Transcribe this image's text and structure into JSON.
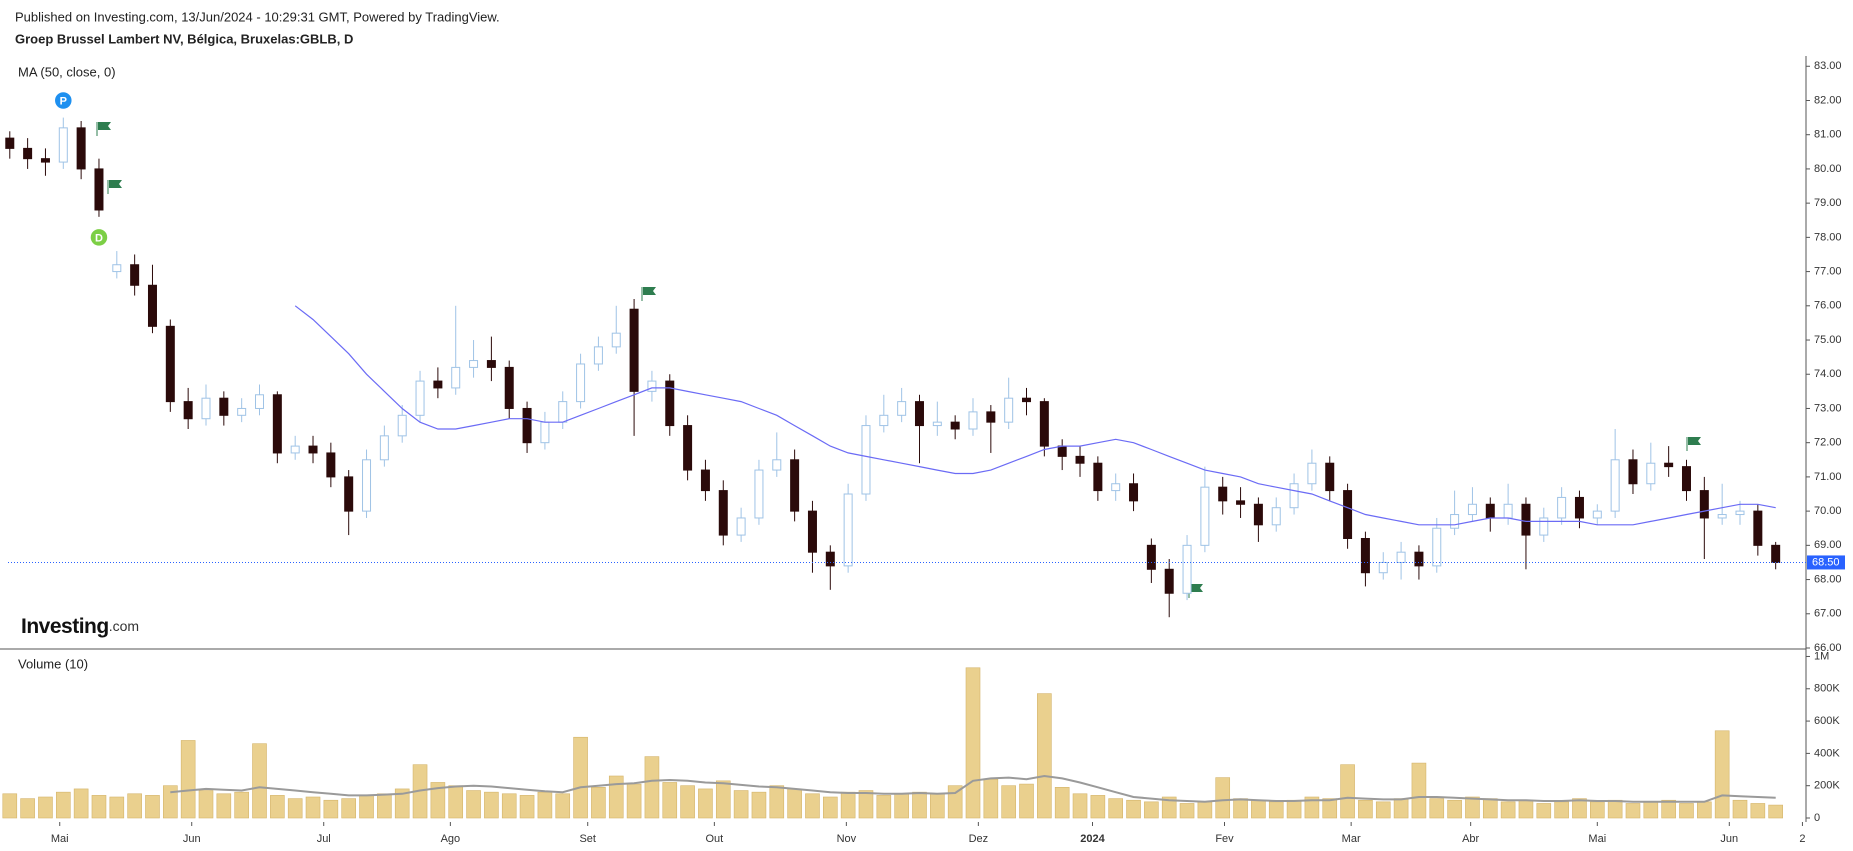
{
  "chart_data": {
    "type": "candlestick",
    "header": "Published on Investing.com, 13/Jun/2024 - 10:29:31 GMT, Powered by TradingView.",
    "title": "Groep Brussel Lambert NV, Bélgica, Bruxelas:GBLB, D",
    "ma_label": "MA (50, close, 0)",
    "logo": "Investing",
    "logo_suffix": ".com",
    "xlim": [
      -0.1,
      100.7
    ],
    "xticks": [
      {
        "value": 2.8,
        "label": "Mai"
      },
      {
        "value": 10.2,
        "label": "Jun"
      },
      {
        "value": 17.6,
        "label": "Jul"
      },
      {
        "value": 24.7,
        "label": "Ago"
      },
      {
        "value": 32.4,
        "label": "Set"
      },
      {
        "value": 39.5,
        "label": "Out"
      },
      {
        "value": 46.9,
        "label": "Nov"
      },
      {
        "value": 54.3,
        "label": "Dez"
      },
      {
        "value": 60.7,
        "label": "2024"
      },
      {
        "value": 68.1,
        "label": "Fev"
      },
      {
        "value": 75.2,
        "label": "Mar"
      },
      {
        "value": 81.9,
        "label": "Abr"
      },
      {
        "value": 89.0,
        "label": "Mai"
      },
      {
        "value": 96.4,
        "label": "Jun"
      },
      {
        "value": 100.5,
        "label": "2"
      }
    ],
    "ylim": [
      66,
      83.3
    ],
    "yticks": [
      {
        "value": 66,
        "label": "66.00"
      },
      {
        "value": 67,
        "label": "67.00"
      },
      {
        "value": 68,
        "label": "68.00"
      },
      {
        "value": 69,
        "label": "69.00"
      },
      {
        "value": 70,
        "label": "70.00"
      },
      {
        "value": 71,
        "label": "71.00"
      },
      {
        "value": 72,
        "label": "72.00"
      },
      {
        "value": 73,
        "label": "73.00"
      },
      {
        "value": 74,
        "label": "74.00"
      },
      {
        "value": 75,
        "label": "75.00"
      },
      {
        "value": 76,
        "label": "76.00"
      },
      {
        "value": 77,
        "label": "77.00"
      },
      {
        "value": 78,
        "label": "78.00"
      },
      {
        "value": 79,
        "label": "79.00"
      },
      {
        "value": 80,
        "label": "80.00"
      },
      {
        "value": 81,
        "label": "81.00"
      },
      {
        "value": 82,
        "label": "82.00"
      },
      {
        "value": 83,
        "label": "83.00"
      }
    ],
    "up_color": "#9fc3e6",
    "down_color": "#2b0a0a",
    "candles": [
      [
        80.9,
        81.1,
        80.3,
        80.6
      ],
      [
        80.6,
        80.9,
        80.0,
        80.3
      ],
      [
        80.3,
        80.6,
        79.8,
        80.2
      ],
      [
        80.2,
        81.5,
        80.0,
        81.2
      ],
      [
        81.2,
        81.4,
        79.7,
        80.0
      ],
      [
        80.0,
        80.3,
        78.6,
        78.8
      ],
      [
        77.0,
        77.6,
        76.8,
        77.2
      ],
      [
        77.2,
        77.5,
        76.3,
        76.6
      ],
      [
        76.6,
        77.2,
        75.2,
        75.4
      ],
      [
        75.4,
        75.6,
        72.9,
        73.2
      ],
      [
        73.2,
        73.6,
        72.4,
        72.7
      ],
      [
        72.7,
        73.7,
        72.5,
        73.3
      ],
      [
        73.3,
        73.5,
        72.5,
        72.8
      ],
      [
        72.8,
        73.3,
        72.6,
        73.0
      ],
      [
        73.0,
        73.7,
        72.8,
        73.4
      ],
      [
        73.4,
        73.5,
        71.4,
        71.7
      ],
      [
        71.7,
        72.2,
        71.5,
        71.9
      ],
      [
        71.9,
        72.2,
        71.4,
        71.7
      ],
      [
        71.7,
        72.0,
        70.7,
        71.0
      ],
      [
        71.0,
        71.2,
        69.3,
        70.0
      ],
      [
        70.0,
        71.8,
        69.8,
        71.5
      ],
      [
        71.5,
        72.5,
        71.3,
        72.2
      ],
      [
        72.2,
        73.1,
        72.0,
        72.8
      ],
      [
        72.8,
        74.1,
        72.6,
        73.8
      ],
      [
        73.8,
        74.2,
        73.3,
        73.6
      ],
      [
        73.6,
        76.0,
        73.4,
        74.2
      ],
      [
        74.2,
        75.0,
        73.9,
        74.4
      ],
      [
        74.4,
        75.1,
        73.8,
        74.2
      ],
      [
        74.2,
        74.4,
        72.7,
        73.0
      ],
      [
        73.0,
        73.2,
        71.7,
        72.0
      ],
      [
        72.0,
        72.9,
        71.8,
        72.6
      ],
      [
        72.6,
        73.5,
        72.4,
        73.2
      ],
      [
        73.2,
        74.6,
        73.0,
        74.3
      ],
      [
        74.3,
        75.1,
        74.1,
        74.8
      ],
      [
        74.8,
        76.0,
        74.6,
        75.2
      ],
      [
        75.9,
        76.2,
        72.2,
        73.5
      ],
      [
        73.5,
        74.1,
        73.2,
        73.8
      ],
      [
        73.8,
        74.0,
        72.2,
        72.5
      ],
      [
        72.5,
        72.8,
        70.9,
        71.2
      ],
      [
        71.2,
        71.5,
        70.3,
        70.6
      ],
      [
        70.6,
        70.9,
        69.0,
        69.3
      ],
      [
        69.3,
        70.1,
        69.1,
        69.8
      ],
      [
        69.8,
        71.5,
        69.6,
        71.2
      ],
      [
        71.2,
        72.3,
        71.0,
        71.5
      ],
      [
        71.5,
        71.8,
        69.7,
        70.0
      ],
      [
        70.0,
        70.3,
        68.2,
        68.8
      ],
      [
        68.8,
        69.0,
        67.7,
        68.4
      ],
      [
        68.4,
        70.8,
        68.2,
        70.5
      ],
      [
        70.5,
        72.8,
        70.3,
        72.5
      ],
      [
        72.5,
        73.4,
        72.3,
        72.8
      ],
      [
        72.8,
        73.6,
        72.6,
        73.2
      ],
      [
        73.2,
        73.4,
        71.4,
        72.5
      ],
      [
        72.5,
        73.2,
        72.2,
        72.6
      ],
      [
        72.6,
        72.8,
        72.1,
        72.4
      ],
      [
        72.4,
        73.3,
        72.2,
        72.9
      ],
      [
        72.9,
        73.1,
        71.7,
        72.6
      ],
      [
        72.6,
        73.9,
        72.4,
        73.3
      ],
      [
        73.3,
        73.6,
        72.8,
        73.2
      ],
      [
        73.2,
        73.3,
        71.6,
        71.9
      ],
      [
        71.9,
        72.1,
        71.2,
        71.6
      ],
      [
        71.6,
        71.9,
        71.0,
        71.4
      ],
      [
        71.4,
        71.6,
        70.3,
        70.6
      ],
      [
        70.6,
        71.1,
        70.3,
        70.8
      ],
      [
        70.8,
        71.1,
        70.0,
        70.3
      ],
      [
        69.0,
        69.2,
        67.9,
        68.3
      ],
      [
        68.3,
        68.6,
        66.9,
        67.6
      ],
      [
        67.6,
        69.3,
        67.4,
        69.0
      ],
      [
        69.0,
        71.3,
        68.8,
        70.7
      ],
      [
        70.7,
        71.0,
        69.9,
        70.3
      ],
      [
        70.3,
        70.7,
        69.8,
        70.2
      ],
      [
        70.2,
        70.4,
        69.1,
        69.6
      ],
      [
        69.6,
        70.4,
        69.4,
        70.1
      ],
      [
        70.1,
        71.1,
        69.9,
        70.8
      ],
      [
        70.8,
        71.8,
        70.6,
        71.4
      ],
      [
        71.4,
        71.6,
        70.3,
        70.6
      ],
      [
        70.6,
        70.8,
        68.9,
        69.2
      ],
      [
        69.2,
        69.4,
        67.8,
        68.2
      ],
      [
        68.2,
        68.8,
        68.0,
        68.5
      ],
      [
        68.5,
        69.1,
        68.0,
        68.8
      ],
      [
        68.8,
        69.0,
        68.0,
        68.4
      ],
      [
        68.4,
        69.8,
        68.2,
        69.5
      ],
      [
        69.5,
        70.6,
        69.3,
        69.9
      ],
      [
        69.9,
        70.7,
        69.7,
        70.2
      ],
      [
        70.2,
        70.4,
        69.4,
        69.8
      ],
      [
        69.8,
        70.8,
        69.6,
        70.2
      ],
      [
        70.2,
        70.4,
        68.3,
        69.3
      ],
      [
        69.3,
        70.1,
        69.1,
        69.8
      ],
      [
        69.8,
        70.7,
        69.6,
        70.4
      ],
      [
        70.4,
        70.6,
        69.5,
        69.8
      ],
      [
        69.8,
        70.2,
        69.6,
        70.0
      ],
      [
        70.0,
        72.4,
        69.8,
        71.5
      ],
      [
        71.5,
        71.8,
        70.5,
        70.8
      ],
      [
        70.8,
        72.0,
        70.6,
        71.4
      ],
      [
        71.4,
        71.9,
        71.0,
        71.3
      ],
      [
        71.3,
        71.5,
        70.3,
        70.6
      ],
      [
        70.6,
        71.0,
        68.6,
        69.8
      ],
      [
        69.8,
        70.8,
        69.6,
        69.9
      ],
      [
        69.9,
        70.3,
        69.6,
        70.0
      ],
      [
        70.0,
        70.2,
        68.7,
        69.0
      ],
      [
        69.0,
        69.1,
        68.3,
        68.5
      ]
    ],
    "ma": {
      "color": "#6b6bf5",
      "values": [
        null,
        null,
        null,
        null,
        null,
        null,
        null,
        null,
        null,
        null,
        null,
        null,
        null,
        null,
        null,
        null,
        76.0,
        75.6,
        75.1,
        74.6,
        74.0,
        73.5,
        73.0,
        72.6,
        72.4,
        72.4,
        72.5,
        72.6,
        72.7,
        72.7,
        72.6,
        72.6,
        72.8,
        73.0,
        73.2,
        73.4,
        73.6,
        73.6,
        73.5,
        73.4,
        73.3,
        73.2,
        73.0,
        72.8,
        72.5,
        72.2,
        71.9,
        71.7,
        71.6,
        71.5,
        71.4,
        71.3,
        71.2,
        71.1,
        71.1,
        71.2,
        71.4,
        71.6,
        71.8,
        71.9,
        71.9,
        72.0,
        72.1,
        72.0,
        71.8,
        71.6,
        71.4,
        71.2,
        71.1,
        71.0,
        70.8,
        70.7,
        70.6,
        70.5,
        70.3,
        70.1,
        69.9,
        69.8,
        69.7,
        69.6,
        69.6,
        69.6,
        69.7,
        69.8,
        69.8,
        69.7,
        69.7,
        69.7,
        69.7,
        69.6,
        69.6,
        69.6,
        69.7,
        69.8,
        69.9,
        70.0,
        70.1,
        70.2,
        70.2,
        70.1
      ]
    },
    "last_price": {
      "value": 68.5,
      "label": "68.50",
      "color": "#2962ff"
    },
    "events": [
      {
        "label": "P",
        "index": 3,
        "price": 82.0,
        "color": "#1e90f0"
      },
      {
        "label": "D",
        "index": 5,
        "price": 78.0,
        "color": "#7ccf45"
      }
    ],
    "volume": {
      "type": "bar",
      "label": "Volume (10)",
      "ylim": [
        0,
        1040000
      ],
      "yticks": [
        0,
        {
          "value": 200000,
          "label": "200K"
        },
        {
          "value": 400000,
          "label": "400K"
        },
        {
          "value": 600000,
          "label": "600K"
        },
        {
          "value": 800000,
          "label": "800K"
        },
        {
          "value": 1000000,
          "label": "1M"
        }
      ],
      "color": "#ead08e",
      "values": [
        150000,
        120000,
        130000,
        160000,
        180000,
        140000,
        130000,
        150000,
        140000,
        200000,
        480000,
        170000,
        150000,
        160000,
        460000,
        140000,
        120000,
        130000,
        110000,
        120000,
        140000,
        150000,
        180000,
        330000,
        220000,
        200000,
        170000,
        160000,
        150000,
        140000,
        160000,
        150000,
        500000,
        190000,
        260000,
        210000,
        380000,
        220000,
        200000,
        180000,
        230000,
        170000,
        160000,
        200000,
        180000,
        150000,
        130000,
        160000,
        170000,
        140000,
        150000,
        160000,
        150000,
        200000,
        930000,
        240000,
        200000,
        210000,
        770000,
        190000,
        150000,
        140000,
        120000,
        110000,
        100000,
        130000,
        90000,
        100000,
        250000,
        120000,
        110000,
        100000,
        110000,
        130000,
        120000,
        330000,
        110000,
        100000,
        120000,
        340000,
        120000,
        110000,
        130000,
        120000,
        100000,
        110000,
        90000,
        100000,
        120000,
        100000,
        110000,
        90000,
        100000,
        110000,
        90000,
        100000,
        540000,
        110000,
        90000,
        80000
      ],
      "ma": {
        "color": "#9a9a9a",
        "values": [
          null,
          null,
          null,
          null,
          null,
          null,
          null,
          null,
          null,
          160000,
          170000,
          180000,
          175000,
          170000,
          190000,
          180000,
          170000,
          160000,
          150000,
          140000,
          140000,
          145000,
          150000,
          170000,
          185000,
          195000,
          200000,
          195000,
          185000,
          175000,
          165000,
          160000,
          190000,
          200000,
          210000,
          215000,
          230000,
          235000,
          230000,
          220000,
          215000,
          205000,
          195000,
          190000,
          180000,
          170000,
          160000,
          155000,
          155000,
          150000,
          150000,
          155000,
          150000,
          155000,
          230000,
          245000,
          250000,
          240000,
          260000,
          245000,
          220000,
          190000,
          160000,
          130000,
          120000,
          110000,
          105000,
          100000,
          110000,
          115000,
          110000,
          105000,
          105000,
          110000,
          110000,
          125000,
          120000,
          115000,
          115000,
          130000,
          130000,
          125000,
          120000,
          115000,
          110000,
          110000,
          105000,
          105000,
          110000,
          105000,
          105000,
          100000,
          100000,
          100000,
          100000,
          100000,
          140000,
          135000,
          130000,
          125000
        ]
      }
    }
  }
}
